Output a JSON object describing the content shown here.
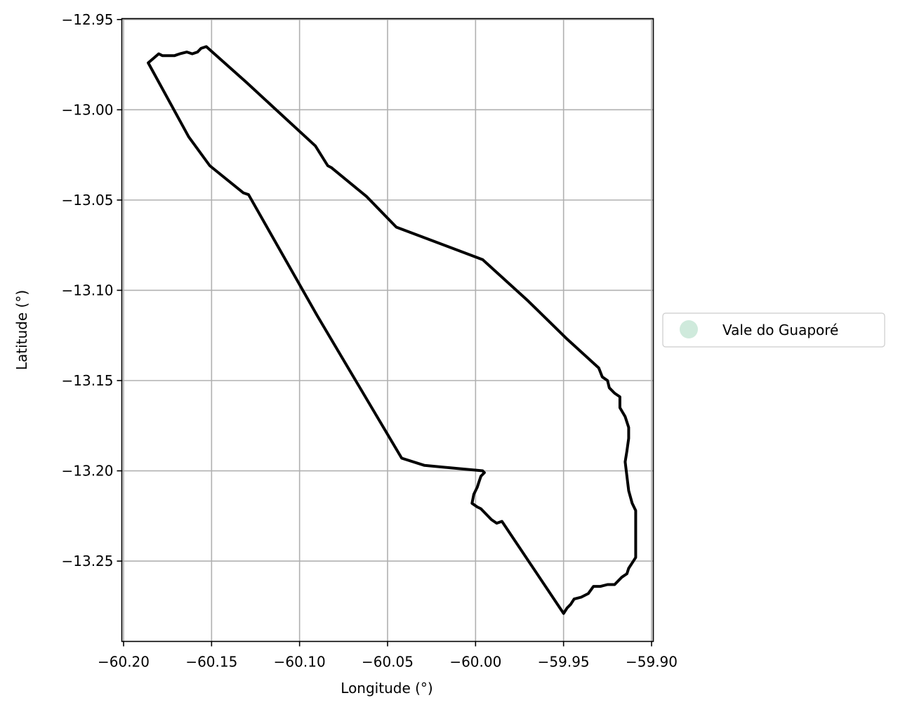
{
  "chart_data": {
    "type": "map",
    "xlabel": "Longitude (°)",
    "ylabel": "Latitude (°)",
    "xlim": [
      -60.201,
      -59.899
    ],
    "ylim": [
      -13.2945,
      -12.9495
    ],
    "grid": true,
    "x_ticks": [
      {
        "value": -60.2,
        "label": "−60.20"
      },
      {
        "value": -60.15,
        "label": "−60.15"
      },
      {
        "value": -60.1,
        "label": "−60.10"
      },
      {
        "value": -60.05,
        "label": "−60.05"
      },
      {
        "value": -60.0,
        "label": "−60.00"
      },
      {
        "value": -59.95,
        "label": "−59.95"
      },
      {
        "value": -59.9,
        "label": "−59.90"
      }
    ],
    "y_ticks": [
      {
        "value": -12.95,
        "label": "−12.95"
      },
      {
        "value": -13.0,
        "label": "−13.00"
      },
      {
        "value": -13.05,
        "label": "−13.05"
      },
      {
        "value": -13.1,
        "label": "−13.10"
      },
      {
        "value": -13.15,
        "label": "−13.15"
      },
      {
        "value": -13.2,
        "label": "−13.20"
      },
      {
        "value": -13.25,
        "label": "−13.25"
      }
    ],
    "legend_position": "center-right outside",
    "series": [
      {
        "name": "Vale do Guaporé",
        "marker_color": "#cfeadc",
        "boundary_color": "#000000",
        "boundary": [
          [
            -60.186,
            -12.974
          ],
          [
            -60.18,
            -12.969
          ],
          [
            -60.178,
            -12.97
          ],
          [
            -60.174,
            -12.97
          ],
          [
            -60.171,
            -12.97
          ],
          [
            -60.168,
            -12.969
          ],
          [
            -60.164,
            -12.968
          ],
          [
            -60.161,
            -12.969
          ],
          [
            -60.158,
            -12.968
          ],
          [
            -60.156,
            -12.966
          ],
          [
            -60.153,
            -12.965
          ],
          [
            -60.13,
            -12.985
          ],
          [
            -60.11,
            -13.003
          ],
          [
            -60.091,
            -13.02
          ],
          [
            -60.084,
            -13.031
          ],
          [
            -60.082,
            -13.032
          ],
          [
            -60.062,
            -13.048
          ],
          [
            -60.045,
            -13.065
          ],
          [
            -59.996,
            -13.083
          ],
          [
            -59.97,
            -13.106
          ],
          [
            -59.948,
            -13.127
          ],
          [
            -59.93,
            -13.143
          ],
          [
            -59.928,
            -13.148
          ],
          [
            -59.925,
            -13.15
          ],
          [
            -59.924,
            -13.154
          ],
          [
            -59.921,
            -13.157
          ],
          [
            -59.918,
            -13.159
          ],
          [
            -59.918,
            -13.165
          ],
          [
            -59.915,
            -13.17
          ],
          [
            -59.913,
            -13.176
          ],
          [
            -59.913,
            -13.182
          ],
          [
            -59.914,
            -13.189
          ],
          [
            -59.915,
            -13.195
          ],
          [
            -59.914,
            -13.203
          ],
          [
            -59.913,
            -13.211
          ],
          [
            -59.911,
            -13.218
          ],
          [
            -59.909,
            -13.222
          ],
          [
            -59.909,
            -13.233
          ],
          [
            -59.909,
            -13.248
          ],
          [
            -59.911,
            -13.251
          ],
          [
            -59.913,
            -13.254
          ],
          [
            -59.914,
            -13.257
          ],
          [
            -59.917,
            -13.259
          ],
          [
            -59.919,
            -13.261
          ],
          [
            -59.921,
            -13.263
          ],
          [
            -59.925,
            -13.263
          ],
          [
            -59.929,
            -13.264
          ],
          [
            -59.933,
            -13.264
          ],
          [
            -59.936,
            -13.268
          ],
          [
            -59.94,
            -13.27
          ],
          [
            -59.944,
            -13.271
          ],
          [
            -59.946,
            -13.274
          ],
          [
            -59.948,
            -13.276
          ],
          [
            -59.95,
            -13.279
          ],
          [
            -59.985,
            -13.228
          ],
          [
            -59.988,
            -13.229
          ],
          [
            -59.991,
            -13.227
          ],
          [
            -59.994,
            -13.224
          ],
          [
            -59.997,
            -13.221
          ],
          [
            -59.999,
            -13.22
          ],
          [
            -60.002,
            -13.218
          ],
          [
            -60.001,
            -13.213
          ],
          [
            -59.999,
            -13.209
          ],
          [
            -59.998,
            -13.206
          ],
          [
            -59.997,
            -13.203
          ],
          [
            -59.995,
            -13.201
          ],
          [
            -59.996,
            -13.2
          ],
          [
            -60.029,
            -13.197
          ],
          [
            -60.042,
            -13.193
          ],
          [
            -60.09,
            -13.114
          ],
          [
            -60.129,
            -13.047
          ],
          [
            -60.132,
            -13.046
          ],
          [
            -60.151,
            -13.031
          ],
          [
            -60.163,
            -13.015
          ],
          [
            -60.186,
            -12.974
          ]
        ]
      }
    ]
  }
}
